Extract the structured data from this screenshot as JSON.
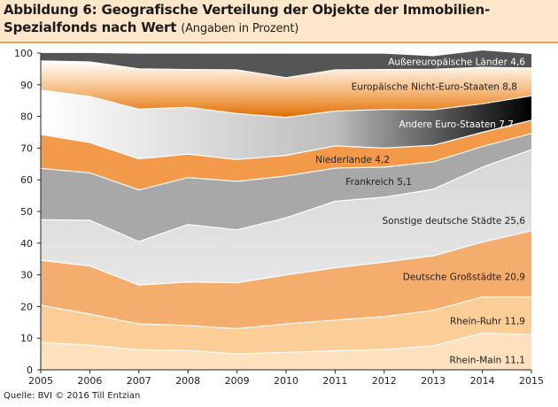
{
  "title": {
    "line1": "Abbildung 6: Geografische Verteilung der Objekte der Immobilien-",
    "line2": "Spezialfonds nach Wert",
    "subtitle": "(Angaben in Prozent)"
  },
  "source": "Quelle: BVI © 2016 Till Entzian",
  "chart_data": {
    "type": "area",
    "stacked": true,
    "x": [
      2005,
      2006,
      2007,
      2008,
      2009,
      2010,
      2011,
      2012,
      2013,
      2014,
      2015
    ],
    "ylim": [
      0,
      100
    ],
    "yticks": [
      0,
      10,
      20,
      30,
      40,
      50,
      60,
      70,
      80,
      90,
      100
    ],
    "grid": false,
    "series": [
      {
        "name": "Rhein-Main",
        "label_value": "11,1",
        "color": "#fde0bd",
        "text_color": "#222222",
        "values": [
          8.6,
          7.8,
          6.3,
          6.1,
          5.0,
          5.5,
          6.0,
          6.4,
          7.6,
          11.6,
          11.1
        ]
      },
      {
        "name": "Rhein-Ruhr",
        "label_value": "11,9",
        "color": "#fbcd97",
        "text_color": "#222222",
        "values": [
          11.8,
          9.8,
          8.2,
          7.9,
          8.0,
          9.0,
          9.7,
          10.4,
          11.2,
          11.4,
          11.9
        ]
      },
      {
        "name": "Deutsche Großstädte",
        "label_value": "20,9",
        "color": "#f5ad6d",
        "text_color": "#222222",
        "values": [
          14.2,
          15.2,
          12.3,
          13.7,
          14.5,
          15.5,
          16.5,
          17.2,
          17.2,
          17.3,
          20.9
        ]
      },
      {
        "name": "Sonstige deutsche Städte",
        "label_value": "25,6",
        "color": "#dcdcdc",
        "text_color": "#222222",
        "values": [
          12.8,
          14.4,
          13.7,
          18.2,
          16.7,
          18.0,
          21.0,
          20.5,
          21.0,
          23.7,
          25.6
        ]
      },
      {
        "name": "Frankreich",
        "label_value": "5,1",
        "color": "#a8a8a8",
        "text_color": "#222222",
        "values": [
          16.2,
          15.0,
          16.3,
          14.8,
          15.3,
          13.2,
          10.5,
          9.5,
          8.7,
          6.5,
          5.1
        ]
      },
      {
        "name": "Niederlande",
        "label_value": "4,2",
        "color": "#f39a4a",
        "text_color": "#222222",
        "values": [
          10.7,
          9.6,
          9.8,
          7.4,
          6.9,
          6.5,
          7.0,
          6.0,
          5.2,
          4.5,
          4.2
        ]
      },
      {
        "name": "Andere Euro-Staaten",
        "label_value": "7,7",
        "color": "#b3b3b3",
        "text_color": "#ffffff",
        "values": [
          14.0,
          14.5,
          15.7,
          14.8,
          14.5,
          12.0,
          11.0,
          12.2,
          11.2,
          9.0,
          7.7
        ]
      },
      {
        "name": "Europäische Nicht-Euro-Staaten",
        "label_value": "8,8",
        "color": "#f18a1c",
        "text_color": "#222222",
        "values": [
          9.2,
          10.9,
          12.7,
          11.9,
          13.8,
          12.5,
          13.0,
          12.6,
          12.8,
          11.5,
          8.8
        ]
      },
      {
        "name": "Außereuropäische Länder",
        "label_value": "4,6",
        "color": "#555555",
        "text_color": "#ffffff",
        "values": [
          2.7,
          3.0,
          5.0,
          5.2,
          5.3,
          7.8,
          5.3,
          5.2,
          4.3,
          5.5,
          4.6
        ]
      }
    ]
  }
}
